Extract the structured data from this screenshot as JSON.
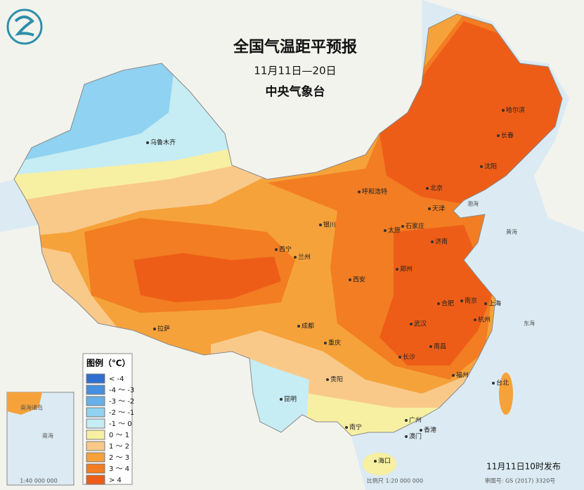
{
  "header": {
    "title": "全国气温距平预报",
    "subtitle": "11月11日—20日",
    "agency": "中央气象台"
  },
  "legend": {
    "title": "图例（℃）",
    "items": [
      {
        "label": "< -4",
        "color": "#2f6fd1"
      },
      {
        "label": "-4 ～ -3",
        "color": "#4690e0"
      },
      {
        "label": "-3 ～ -2",
        "color": "#66b1ea"
      },
      {
        "label": "-2 ～ -1",
        "color": "#8fd2f1"
      },
      {
        "label": "-1 ～ 0",
        "color": "#c6ecf4"
      },
      {
        "label": "0 ～ 1",
        "color": "#f7f0a2"
      },
      {
        "label": "1 ～ 2",
        "color": "#f9c98a"
      },
      {
        "label": "2 ～ 3",
        "color": "#f6a23a"
      },
      {
        "label": "3 ～ 4",
        "color": "#f27d22"
      },
      {
        "label": "> 4",
        "color": "#ee5d17"
      }
    ]
  },
  "cities": [
    "乌鲁木齐",
    "哈尔滨",
    "长春",
    "沈阳",
    "北京",
    "天津",
    "呼和浩特",
    "石家庄",
    "太原",
    "济南",
    "银川",
    "西宁",
    "兰州",
    "西安",
    "郑州",
    "合肥",
    "南京",
    "上海",
    "杭州",
    "武汉",
    "长沙",
    "南昌",
    "成都",
    "重庆",
    "拉萨",
    "贵阳",
    "昆明",
    "南宁",
    "广州",
    "福州",
    "台北",
    "香港",
    "澳门",
    "海口"
  ],
  "seas": [
    "渤海",
    "黄海",
    "东海",
    "南海"
  ],
  "inset": {
    "label": "南海诸岛",
    "scale": "1:40 000 000"
  },
  "footer": {
    "issued": "11月11日10时发布",
    "scale": "比例尺 1:20 000 000",
    "map_number": "审图号: GS (2017) 3320号"
  }
}
